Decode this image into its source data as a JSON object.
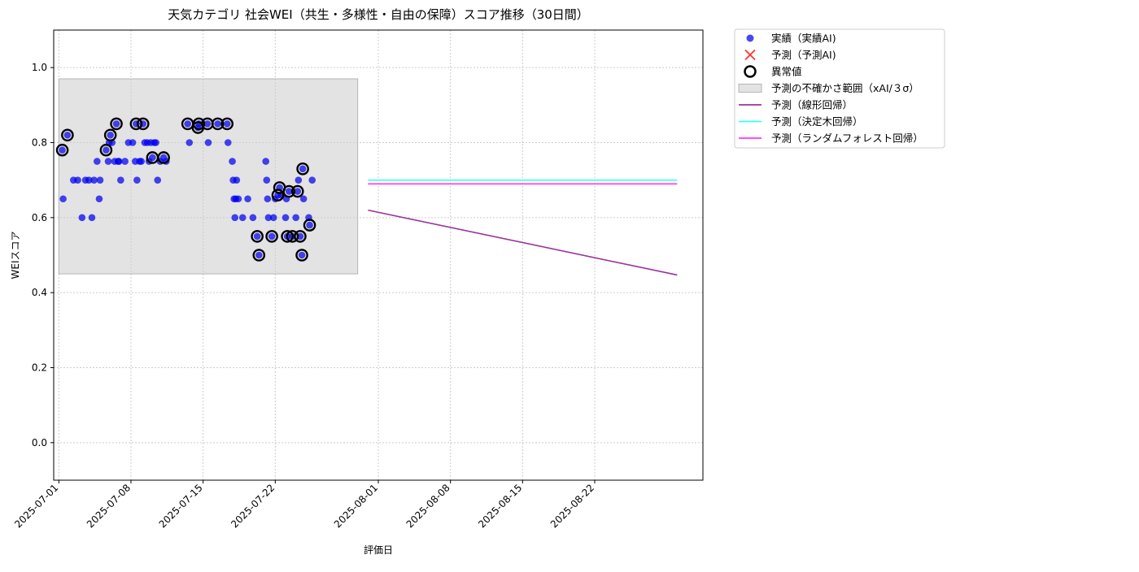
{
  "chart_data": {
    "type": "scatter",
    "title": "天気カテゴリ 社会WEI（共生・多様性・自由の保障）スコア推移（30日間）",
    "xlabel": "評価日",
    "ylabel": "WEIスコア",
    "x_type": "date",
    "xlim": [
      "2025-06-30T12:00",
      "2025-09-01T12:00"
    ],
    "ylim": [
      -0.1,
      1.1
    ],
    "x_ticks": [
      "2025-07-01",
      "2025-07-08",
      "2025-07-15",
      "2025-07-22",
      "2025-08-01",
      "2025-08-08",
      "2025-08-15",
      "2025-08-22"
    ],
    "y_ticks": [
      "0.0",
      "0.2",
      "0.4",
      "0.6",
      "0.8",
      "1.0"
    ],
    "grid": true,
    "legend_position": "outside-top-right",
    "colors": {
      "actual": "#0000ee",
      "predicted_marker": "#ff3333",
      "anomaly_ring": "#000000",
      "uncertainty_band": "#cccccc",
      "linear": "#993399",
      "decision_tree": "#33ffff",
      "random_forest": "#ff33ff"
    },
    "legend": [
      {
        "key": "actual",
        "label": "実績（実績AI)"
      },
      {
        "key": "predicted",
        "label": "予測（予測AI)"
      },
      {
        "key": "anomaly",
        "label": "異常値"
      },
      {
        "key": "band",
        "label": "予測の不確かさ範囲（xAI/３σ）"
      },
      {
        "key": "linear",
        "label": "予測（線形回帰）"
      },
      {
        "key": "decision_tree",
        "label": "予測（決定木回帰）"
      },
      {
        "key": "random_forest",
        "label": "予測（ランダムフォレスト回帰）"
      }
    ],
    "uncertainty_band": {
      "x": [
        "2025-07-01",
        "2025-07-30"
      ],
      "y": [
        0.45,
        0.97
      ]
    },
    "series": [
      {
        "name": "実績（実績AI)",
        "kind": "scatter",
        "points": [
          [
            "2025-07-01T08:00",
            0.78
          ],
          [
            "2025-07-01T10:00",
            0.65
          ],
          [
            "2025-07-01T20:00",
            0.82
          ],
          [
            "2025-07-02T10:00",
            0.7
          ],
          [
            "2025-07-02T20:00",
            0.7
          ],
          [
            "2025-07-03T06:00",
            0.6
          ],
          [
            "2025-07-03T14:00",
            0.7
          ],
          [
            "2025-07-03T22:00",
            0.7
          ],
          [
            "2025-07-04T05:00",
            0.6
          ],
          [
            "2025-07-04T10:00",
            0.7
          ],
          [
            "2025-07-04T17:00",
            0.75
          ],
          [
            "2025-07-04T22:00",
            0.65
          ],
          [
            "2025-07-05T00:00",
            0.7
          ],
          [
            "2025-07-05T14:00",
            0.78
          ],
          [
            "2025-07-05T19:00",
            0.75
          ],
          [
            "2025-07-05T21:00",
            0.8
          ],
          [
            "2025-07-06T00:00",
            0.82
          ],
          [
            "2025-07-06T04:00",
            0.8
          ],
          [
            "2025-07-06T10:00",
            0.75
          ],
          [
            "2025-07-06T14:00",
            0.85
          ],
          [
            "2025-07-06T18:00",
            0.75
          ],
          [
            "2025-07-06T20:00",
            0.75
          ],
          [
            "2025-07-07T00:00",
            0.7
          ],
          [
            "2025-07-07T10:00",
            0.75
          ],
          [
            "2025-07-07T18:00",
            0.8
          ],
          [
            "2025-07-08T04:00",
            0.8
          ],
          [
            "2025-07-08T10:00",
            0.75
          ],
          [
            "2025-07-08T12:00",
            0.85
          ],
          [
            "2025-07-08T14:00",
            0.7
          ],
          [
            "2025-07-08T20:00",
            0.75
          ],
          [
            "2025-07-09T00:00",
            0.75
          ],
          [
            "2025-07-09T04:00",
            0.85
          ],
          [
            "2025-07-09T08:00",
            0.8
          ],
          [
            "2025-07-09T14:00",
            0.8
          ],
          [
            "2025-07-09T18:00",
            0.75
          ],
          [
            "2025-07-09T22:00",
            0.8
          ],
          [
            "2025-07-10T02:00",
            0.76
          ],
          [
            "2025-07-10T06:00",
            0.8
          ],
          [
            "2025-07-10T10:00",
            0.8
          ],
          [
            "2025-07-10T14:00",
            0.7
          ],
          [
            "2025-07-10T20:00",
            0.75
          ],
          [
            "2025-07-11T04:00",
            0.76
          ],
          [
            "2025-07-11T10:00",
            0.75
          ],
          [
            "2025-07-13T12:00",
            0.85
          ],
          [
            "2025-07-13T16:00",
            0.8
          ],
          [
            "2025-07-14T12:00",
            0.84
          ],
          [
            "2025-07-14T14:00",
            0.85
          ],
          [
            "2025-07-15T10:00",
            0.85
          ],
          [
            "2025-07-15T12:00",
            0.8
          ],
          [
            "2025-07-16T10:00",
            0.85
          ],
          [
            "2025-07-17T08:00",
            0.85
          ],
          [
            "2025-07-17T10:00",
            0.8
          ],
          [
            "2025-07-17T20:00",
            0.75
          ],
          [
            "2025-07-17T22:00",
            0.7
          ],
          [
            "2025-07-18T00:00",
            0.65
          ],
          [
            "2025-07-18T02:00",
            0.6
          ],
          [
            "2025-07-18T04:00",
            0.65
          ],
          [
            "2025-07-18T06:00",
            0.7
          ],
          [
            "2025-07-18T10:00",
            0.65
          ],
          [
            "2025-07-18T20:00",
            0.6
          ],
          [
            "2025-07-19T08:00",
            0.65
          ],
          [
            "2025-07-19T20:00",
            0.6
          ],
          [
            "2025-07-20T06:00",
            0.55
          ],
          [
            "2025-07-20T10:00",
            0.5
          ],
          [
            "2025-07-21T02:00",
            0.75
          ],
          [
            "2025-07-21T04:00",
            0.7
          ],
          [
            "2025-07-21T06:00",
            0.65
          ],
          [
            "2025-07-21T08:00",
            0.6
          ],
          [
            "2025-07-21T16:00",
            0.55
          ],
          [
            "2025-07-21T20:00",
            0.6
          ],
          [
            "2025-07-22T00:00",
            0.65
          ],
          [
            "2025-07-22T06:00",
            0.66
          ],
          [
            "2025-07-22T10:00",
            0.68
          ],
          [
            "2025-07-22T14:00",
            0.66
          ],
          [
            "2025-07-23T00:00",
            0.6
          ],
          [
            "2025-07-23T02:00",
            0.65
          ],
          [
            "2025-07-23T04:00",
            0.55
          ],
          [
            "2025-07-23T08:00",
            0.67
          ],
          [
            "2025-07-23T16:00",
            0.55
          ],
          [
            "2025-07-24T00:00",
            0.6
          ],
          [
            "2025-07-24T04:00",
            0.67
          ],
          [
            "2025-07-24T06:00",
            0.7
          ],
          [
            "2025-07-24T10:00",
            0.55
          ],
          [
            "2025-07-24T14:00",
            0.5
          ],
          [
            "2025-07-24T16:00",
            0.73
          ],
          [
            "2025-07-24T18:00",
            0.65
          ],
          [
            "2025-07-25T06:00",
            0.6
          ],
          [
            "2025-07-25T08:00",
            0.58
          ],
          [
            "2025-07-25T14:00",
            0.7
          ]
        ]
      },
      {
        "name": "異常値",
        "kind": "anomaly",
        "points": [
          [
            "2025-07-01T08:00",
            0.78
          ],
          [
            "2025-07-01T20:00",
            0.82
          ],
          [
            "2025-07-05T14:00",
            0.78
          ],
          [
            "2025-07-06T00:00",
            0.82
          ],
          [
            "2025-07-06T14:00",
            0.85
          ],
          [
            "2025-07-08T12:00",
            0.85
          ],
          [
            "2025-07-09T04:00",
            0.85
          ],
          [
            "2025-07-10T02:00",
            0.76
          ],
          [
            "2025-07-11T04:00",
            0.76
          ],
          [
            "2025-07-13T12:00",
            0.85
          ],
          [
            "2025-07-14T12:00",
            0.84
          ],
          [
            "2025-07-14T14:00",
            0.85
          ],
          [
            "2025-07-15T10:00",
            0.85
          ],
          [
            "2025-07-16T10:00",
            0.85
          ],
          [
            "2025-07-17T08:00",
            0.85
          ],
          [
            "2025-07-20T06:00",
            0.55
          ],
          [
            "2025-07-20T10:00",
            0.5
          ],
          [
            "2025-07-21T16:00",
            0.55
          ],
          [
            "2025-07-22T06:00",
            0.66
          ],
          [
            "2025-07-22T10:00",
            0.68
          ],
          [
            "2025-07-23T04:00",
            0.55
          ],
          [
            "2025-07-23T08:00",
            0.67
          ],
          [
            "2025-07-23T16:00",
            0.55
          ],
          [
            "2025-07-24T04:00",
            0.67
          ],
          [
            "2025-07-24T10:00",
            0.55
          ],
          [
            "2025-07-24T14:00",
            0.5
          ],
          [
            "2025-07-24T16:00",
            0.73
          ],
          [
            "2025-07-25T08:00",
            0.58
          ]
        ]
      },
      {
        "name": "予測（線形回帰）",
        "kind": "line",
        "points": [
          [
            "2025-07-31",
            0.62
          ],
          [
            "2025-08-30",
            0.447
          ]
        ]
      },
      {
        "name": "予測（決定木回帰）",
        "kind": "line",
        "points": [
          [
            "2025-07-31",
            0.7
          ],
          [
            "2025-08-30",
            0.7
          ]
        ]
      },
      {
        "name": "予測（ランダムフォレスト回帰）",
        "kind": "line",
        "points": [
          [
            "2025-07-31",
            0.69
          ],
          [
            "2025-08-30",
            0.69
          ]
        ]
      }
    ]
  }
}
